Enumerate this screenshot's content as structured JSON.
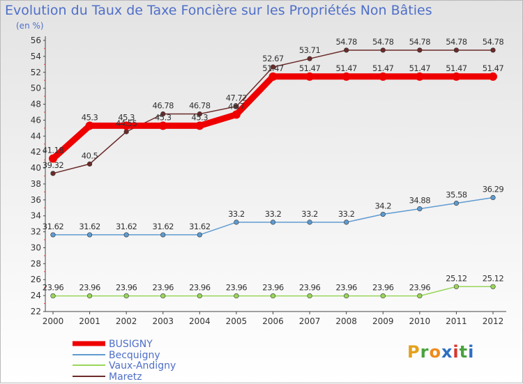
{
  "chart_data": {
    "type": "line",
    "title": "Evolution du Taux de Taxe Foncière sur les Propriétés Non Bâties",
    "ylabel": "(en %)",
    "xlabel": "",
    "ylim": [
      22,
      56
    ],
    "yticks": [
      22,
      24,
      26,
      28,
      30,
      32,
      34,
      36,
      38,
      40,
      42,
      44,
      46,
      48,
      50,
      52,
      54,
      56
    ],
    "categories": [
      "2000",
      "2001",
      "2002",
      "2003",
      "2004",
      "2005",
      "2006",
      "2007",
      "2008",
      "2009",
      "2010",
      "2011",
      "2012"
    ],
    "grid": false,
    "legend": "bottom-left",
    "series": [
      {
        "name": "BUSIGNY",
        "color": "#ee0000",
        "values": [
          41.18,
          45.3,
          45.3,
          45.3,
          45.3,
          46.7,
          51.47,
          51.47,
          51.47,
          51.47,
          51.47,
          51.47,
          51.47
        ],
        "labels": [
          "41.18",
          "45.3",
          "45.3",
          "45.3",
          "45.3",
          "46.7",
          "51.47",
          "51.47",
          "51.47",
          "51.47",
          "51.47",
          "51.47",
          "51.47"
        ]
      },
      {
        "name": "Becquigny",
        "color": "#5f9bd0",
        "values": [
          31.62,
          31.62,
          31.62,
          31.62,
          31.62,
          33.2,
          33.2,
          33.2,
          33.2,
          34.2,
          34.88,
          35.58,
          36.29
        ],
        "labels": [
          "31.62",
          "31.62",
          "31.62",
          "31.62",
          "31.62",
          "33.2",
          "33.2",
          "33.2",
          "33.2",
          "34.2",
          "34.88",
          "35.58",
          "36.29"
        ]
      },
      {
        "name": "Vaux-Andigny",
        "color": "#99d65a",
        "values": [
          23.96,
          23.96,
          23.96,
          23.96,
          23.96,
          23.96,
          23.96,
          23.96,
          23.96,
          23.96,
          23.96,
          25.12,
          25.12
        ],
        "labels": [
          "23.96",
          "23.96",
          "23.96",
          "23.96",
          "23.96",
          "23.96",
          "23.96",
          "23.96",
          "23.96",
          "23.96",
          "23.96",
          "25.12",
          "25.12"
        ]
      },
      {
        "name": "Maretz",
        "color": "#6b2a2a",
        "values": [
          39.32,
          40.5,
          44.55,
          46.78,
          46.78,
          47.72,
          52.67,
          53.71,
          54.78,
          54.78,
          54.78,
          54.78,
          54.78
        ],
        "labels": [
          "39.32",
          "40.5",
          "44.55",
          "46.78",
          "46.78",
          "47.72",
          "52.67",
          "53.71",
          "54.78",
          "54.78",
          "54.78",
          "54.78",
          "54.78"
        ]
      }
    ]
  },
  "brand": {
    "letters": [
      "P",
      "r",
      "o",
      "x",
      "i",
      "t",
      "i"
    ],
    "colors": [
      "#e3a11b",
      "#49a33e",
      "#f08a1c",
      "#2f6fc0",
      "#d9352b",
      "#49a33e",
      "#2f6fc0"
    ]
  }
}
